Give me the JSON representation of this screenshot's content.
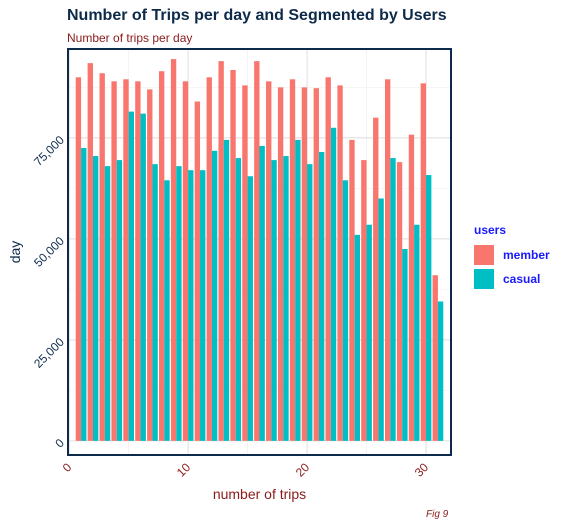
{
  "chart_data": {
    "type": "bar",
    "title": "Number of Trips per day and Segmented by Users",
    "subtitle": "Number of trips per day",
    "caption": "Fig 9",
    "xlabel": "number of trips",
    "ylabel": "day",
    "x": [
      1,
      2,
      3,
      4,
      5,
      6,
      7,
      8,
      9,
      10,
      11,
      12,
      13,
      14,
      15,
      16,
      17,
      18,
      19,
      20,
      21,
      22,
      23,
      24,
      25,
      26,
      27,
      28,
      29,
      30,
      31
    ],
    "xlim": [
      -0.1,
      32.1
    ],
    "ylim": [
      -3500,
      97000
    ],
    "xticks": [
      0,
      10,
      20,
      30
    ],
    "xtick_labels": [
      "0",
      "10",
      "20",
      "30"
    ],
    "yticks": [
      0,
      25000,
      50000,
      75000
    ],
    "ytick_labels": [
      "0",
      "25,000",
      "50,000",
      "75,000"
    ],
    "grid": true,
    "legend_title": "users",
    "legend_position": "right",
    "series": [
      {
        "name": "member",
        "color": "#F8766D",
        "values": [
          90000,
          93500,
          91000,
          89000,
          89500,
          89000,
          87000,
          91500,
          94500,
          89000,
          84000,
          90000,
          94000,
          91800,
          88000,
          94000,
          89000,
          87500,
          89500,
          87500,
          87300,
          90000,
          88000,
          74500,
          69500,
          80000,
          89500,
          69000,
          75800,
          88500,
          41000
        ]
      },
      {
        "name": "casual",
        "color": "#00BFC4",
        "values": [
          72500,
          70500,
          68000,
          69500,
          81500,
          81000,
          68500,
          64500,
          68000,
          67000,
          67000,
          71800,
          74500,
          70000,
          65500,
          73000,
          69500,
          70500,
          74500,
          68500,
          71500,
          77500,
          64500,
          51000,
          53500,
          60000,
          70000,
          47500,
          53500,
          65800,
          34500
        ]
      }
    ]
  }
}
